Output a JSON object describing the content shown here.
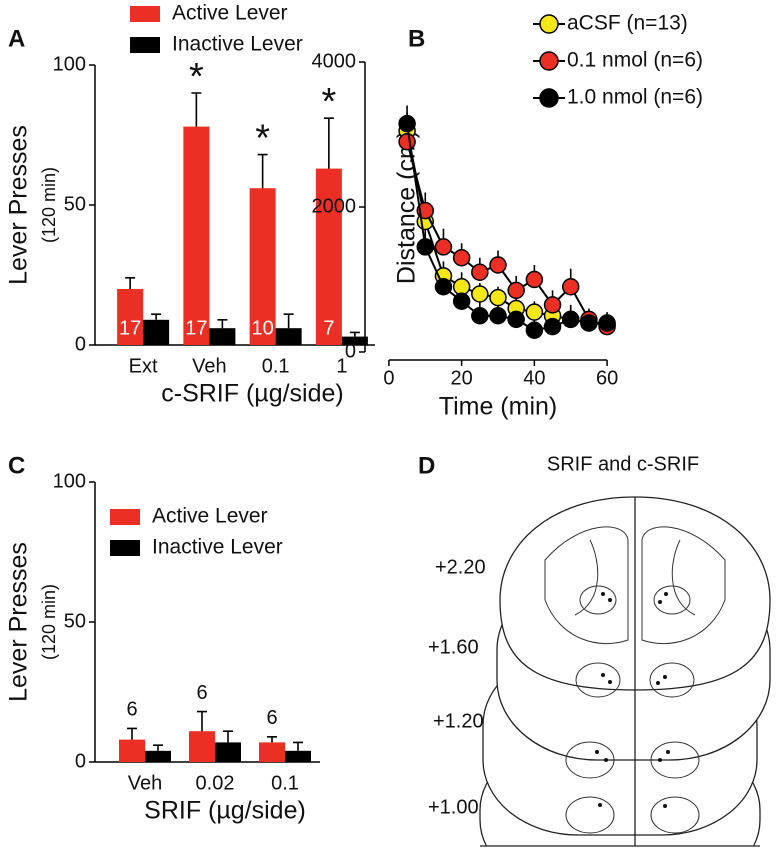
{
  "chart_data": [
    {
      "panel": "A",
      "type": "bar",
      "y_label": "Lever Presses",
      "y_sublabel": "(120 min)",
      "x_label": "c-SRIF (µg/side)",
      "categories": [
        "Ext",
        "Veh",
        "0.1",
        "1"
      ],
      "series": [
        {
          "name": "Active Lever",
          "color": "#ec2f24",
          "values": [
            20,
            78,
            56,
            63
          ],
          "errors": [
            4,
            12,
            12,
            18
          ]
        },
        {
          "name": "Inactive Lever",
          "color": "#000000",
          "values": [
            9,
            6,
            6,
            3
          ],
          "errors": [
            2,
            3,
            5,
            1.5
          ]
        }
      ],
      "n_labels": [
        17,
        17,
        10,
        7
      ],
      "significance": [
        null,
        "*",
        "*",
        "*"
      ],
      "ylim": [
        0,
        100
      ],
      "yticks": [
        0,
        50,
        100
      ]
    },
    {
      "panel": "B",
      "type": "line",
      "y_label": "Distance (cm)",
      "x_label": "Time (min)",
      "x": [
        5,
        10,
        15,
        20,
        25,
        30,
        35,
        40,
        45,
        50,
        55,
        60
      ],
      "series": [
        {
          "name": "aCSF (n=13)",
          "color": "#f5e616",
          "values": [
            3050,
            1800,
            1050,
            900,
            800,
            750,
            600,
            550,
            500,
            450,
            400,
            380
          ],
          "errors": [
            250,
            250,
            200,
            200,
            150,
            150,
            150,
            150,
            150,
            150,
            150,
            150
          ]
        },
        {
          "name": "0.1 nmol (n=6)",
          "color": "#ec2f24",
          "values": [
            2900,
            1950,
            1450,
            1300,
            1100,
            1200,
            850,
            1000,
            650,
            900,
            450,
            350
          ],
          "errors": [
            200,
            250,
            250,
            200,
            200,
            200,
            200,
            200,
            200,
            250,
            150,
            150
          ]
        },
        {
          "name": "1.0 nmol (n=6)",
          "color": "#000000",
          "values": [
            3150,
            1450,
            900,
            700,
            500,
            500,
            450,
            300,
            350,
            450,
            400,
            400
          ],
          "errors": [
            250,
            350,
            250,
            250,
            200,
            200,
            200,
            200,
            200,
            200,
            150,
            150
          ]
        }
      ],
      "xlim": [
        -3,
        63
      ],
      "xticks": [
        0,
        20,
        40,
        60
      ],
      "ylim": [
        0,
        4000
      ],
      "yticks": [
        0,
        2000,
        4000
      ]
    },
    {
      "panel": "C",
      "type": "bar",
      "y_label": "Lever Presses",
      "y_sublabel": "(120 min)",
      "x_label": "SRIF (µg/side)",
      "categories": [
        "Veh",
        "0.02",
        "0.1"
      ],
      "series": [
        {
          "name": "Active Lever",
          "color": "#ec2f24",
          "values": [
            8,
            11,
            7
          ],
          "errors": [
            4,
            7,
            2
          ]
        },
        {
          "name": "Inactive Lever",
          "color": "#000000",
          "values": [
            4,
            7,
            4
          ],
          "errors": [
            2,
            4,
            3
          ]
        }
      ],
      "n_labels": [
        6,
        6,
        6
      ],
      "ylim": [
        0,
        100
      ],
      "yticks": [
        0,
        50,
        100
      ]
    }
  ],
  "panel_d": {
    "panel": "D",
    "title": "SRIF and c-SRIF",
    "levels": [
      "+2.20",
      "+1.60",
      "+1.20",
      "+1.00"
    ]
  }
}
